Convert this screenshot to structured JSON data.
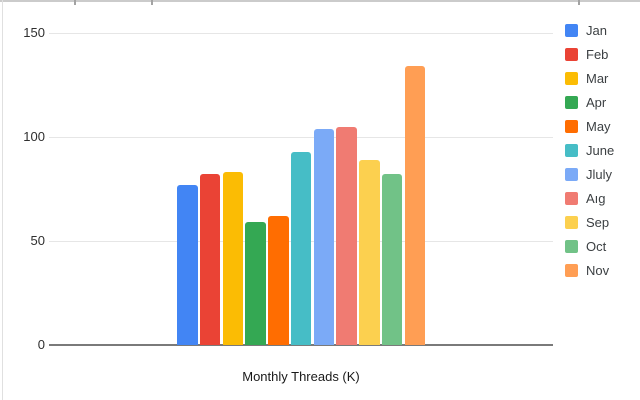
{
  "chart_data": {
    "type": "bar",
    "title": "",
    "xlabel": "Monthly Threads (K)",
    "ylabel": "",
    "ylim": [
      0,
      150
    ],
    "y_ticks": [
      0,
      50,
      100,
      150
    ],
    "grid": true,
    "legend_position": "right",
    "categories": [
      "Jan",
      "Feb",
      "Mar",
      "Apr",
      "May",
      "June",
      "Jluly",
      "Aıg",
      "Sep",
      "Oct",
      "Nov"
    ],
    "values": [
      77,
      82,
      83,
      59,
      62,
      93,
      104,
      105,
      89,
      82,
      134
    ],
    "colors": [
      "#4285F4",
      "#EA4335",
      "#FBBC04",
      "#34A853",
      "#FF6D01",
      "#46BDC6",
      "#7BAAF7",
      "#F07B72",
      "#FCD04F",
      "#71C287",
      "#FF9E54"
    ]
  }
}
